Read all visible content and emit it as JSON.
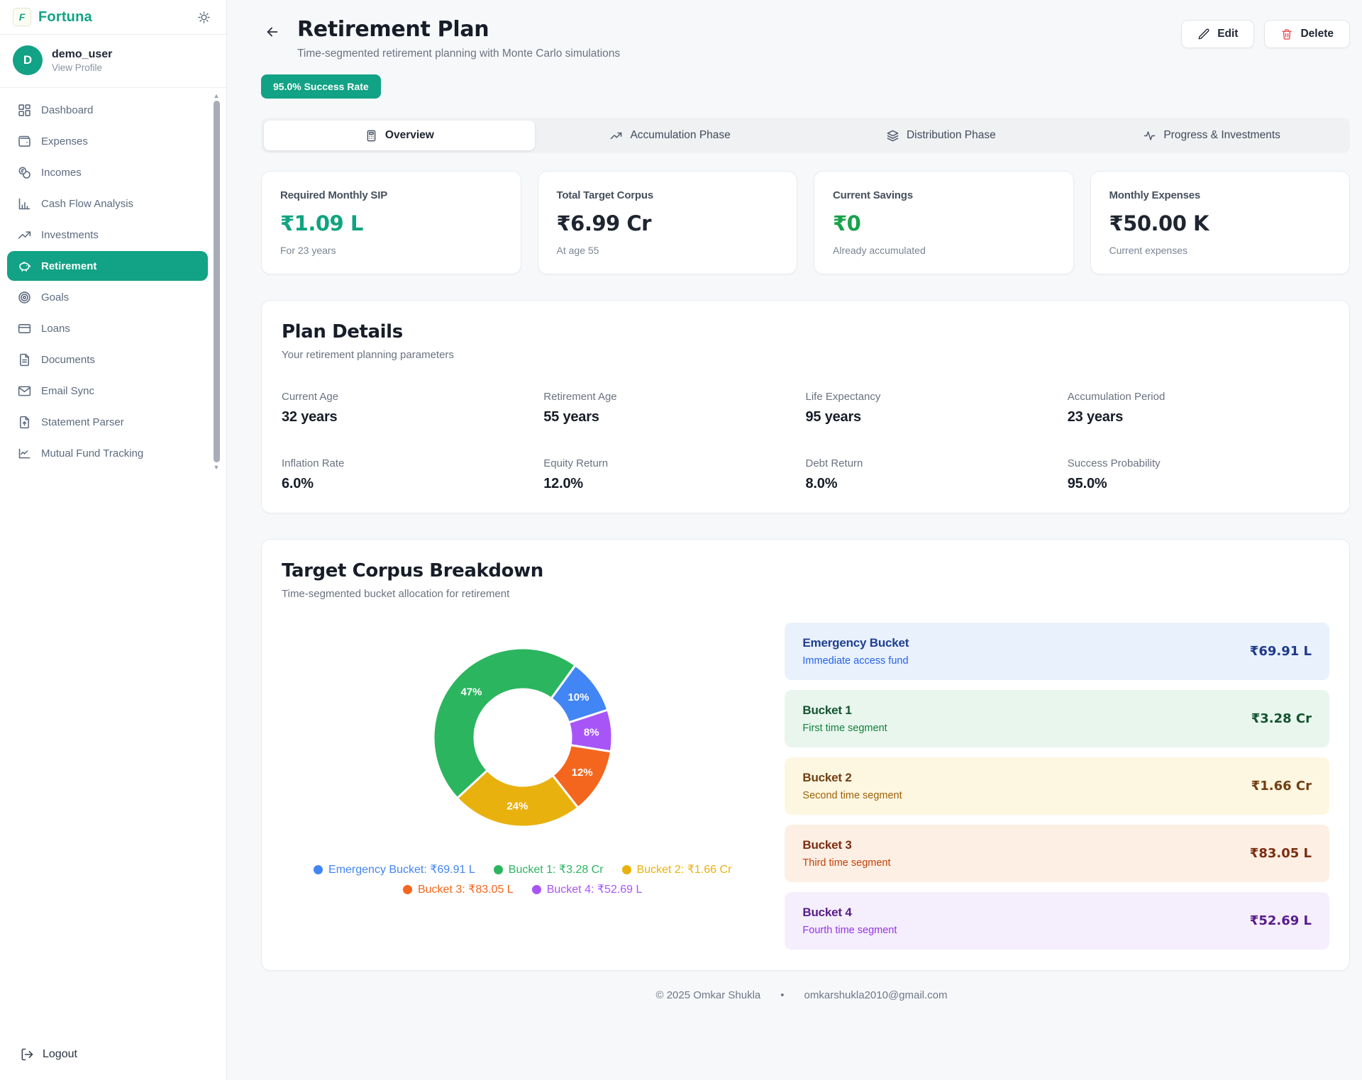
{
  "brand": {
    "name": "Fortuna",
    "logo_letter": "F"
  },
  "user": {
    "initial": "D",
    "name": "demo_user",
    "action": "View Profile"
  },
  "sidebar": {
    "items": [
      {
        "label": "Dashboard",
        "icon": "dashboard-grid-icon",
        "active": false
      },
      {
        "label": "Expenses",
        "icon": "wallet-icon",
        "active": false
      },
      {
        "label": "Incomes",
        "icon": "coins-icon",
        "active": false
      },
      {
        "label": "Cash Flow Analysis",
        "icon": "bar-chart-icon",
        "active": false
      },
      {
        "label": "Investments",
        "icon": "trending-up-icon",
        "active": false
      },
      {
        "label": "Retirement",
        "icon": "piggy-bank-icon",
        "active": true
      },
      {
        "label": "Goals",
        "icon": "target-icon",
        "active": false
      },
      {
        "label": "Loans",
        "icon": "credit-card-icon",
        "active": false
      },
      {
        "label": "Documents",
        "icon": "document-icon",
        "active": false
      },
      {
        "label": "Email Sync",
        "icon": "envelope-icon",
        "active": false
      },
      {
        "label": "Statement Parser",
        "icon": "file-upload-icon",
        "active": false
      },
      {
        "label": "Mutual Fund Tracking",
        "icon": "line-chart-icon",
        "active": false
      }
    ],
    "logout_label": "Logout"
  },
  "header": {
    "title": "Retirement Plan",
    "subtitle": "Time-segmented retirement planning with Monte Carlo simulations",
    "edit_label": "Edit",
    "delete_label": "Delete",
    "success_badge": "95.0% Success Rate"
  },
  "tabs": [
    {
      "label": "Overview",
      "icon": "calculator-icon",
      "active": true
    },
    {
      "label": "Accumulation Phase",
      "icon": "trending-up-icon",
      "active": false
    },
    {
      "label": "Distribution Phase",
      "icon": "layers-icon",
      "active": false
    },
    {
      "label": "Progress & Investments",
      "icon": "activity-icon",
      "active": false
    }
  ],
  "summary_cards": [
    {
      "label": "Required Monthly SIP",
      "value": "₹1.09 L",
      "note": "For 23 years",
      "value_color": "#10a37f"
    },
    {
      "label": "Total Target Corpus",
      "value": "₹6.99 Cr",
      "note": "At age 55",
      "value_color": "#1e2530"
    },
    {
      "label": "Current Savings",
      "value": "₹0",
      "note": "Already accumulated",
      "value_color": "#16a34a"
    },
    {
      "label": "Monthly Expenses",
      "value": "₹50.00 K",
      "note": "Current expenses",
      "value_color": "#1e2530"
    }
  ],
  "plan_details": {
    "title": "Plan Details",
    "subtitle": "Your retirement planning parameters",
    "fields": [
      {
        "label": "Current Age",
        "value": "32 years"
      },
      {
        "label": "Retirement Age",
        "value": "55 years"
      },
      {
        "label": "Life Expectancy",
        "value": "95 years"
      },
      {
        "label": "Accumulation Period",
        "value": "23 years"
      },
      {
        "label": "Inflation Rate",
        "value": "6.0%"
      },
      {
        "label": "Equity Return",
        "value": "12.0%"
      },
      {
        "label": "Debt Return",
        "value": "8.0%"
      },
      {
        "label": "Success Probability",
        "value": "95.0%"
      }
    ]
  },
  "corpus_breakdown": {
    "title": "Target Corpus Breakdown",
    "subtitle": "Time-segmented bucket allocation for retirement",
    "buckets": [
      {
        "name": "Emergency Bucket",
        "desc": "Immediate access fund",
        "value": "₹69.91 L",
        "bg": "#e9f1fd",
        "title_color": "#1d3f8f",
        "desc_color": "#2563eb",
        "value_color": "#1e3a8a"
      },
      {
        "name": "Bucket 1",
        "desc": "First time segment",
        "value": "₹3.28 Cr",
        "bg": "#e8f6ee",
        "title_color": "#14532d",
        "desc_color": "#15803d",
        "value_color": "#14532d"
      },
      {
        "name": "Bucket 2",
        "desc": "Second time segment",
        "value": "₹1.66 Cr",
        "bg": "#fdf6e1",
        "title_color": "#713f12",
        "desc_color": "#a16207",
        "value_color": "#713f12"
      },
      {
        "name": "Bucket 3",
        "desc": "Third time segment",
        "value": "₹83.05 L",
        "bg": "#fdefe3",
        "title_color": "#7c2d12",
        "desc_color": "#c2410c",
        "value_color": "#7c2d12"
      },
      {
        "name": "Bucket 4",
        "desc": "Fourth time segment",
        "value": "₹52.69 L",
        "bg": "#f5eefd",
        "title_color": "#581c87",
        "desc_color": "#9333ea",
        "value_color": "#581c87"
      }
    ]
  },
  "chart_data": {
    "type": "pie",
    "subtype": "donut",
    "title": "Target Corpus Breakdown",
    "labels": [
      "Emergency Bucket",
      "Bucket 1",
      "Bucket 2",
      "Bucket 3",
      "Bucket 4"
    ],
    "values_lakh": [
      69.91,
      328,
      166,
      83.05,
      52.69
    ],
    "values_display": [
      "₹69.91 L",
      "₹3.28 Cr",
      "₹1.66 Cr",
      "₹83.05 L",
      "₹52.69 L"
    ],
    "percent_labels": [
      "10%",
      "47%",
      "24%",
      "12%",
      "8%"
    ],
    "colors": [
      "#4285f4",
      "#2bb55f",
      "#e9b10e",
      "#f4661d",
      "#a855f7"
    ],
    "total_display": "₹6.99 Cr",
    "start_angle_deg": 36,
    "draw_order_clockwise": [
      0,
      4,
      3,
      2,
      1
    ],
    "legend_position": "bottom",
    "inner_radius_ratio": 0.54
  },
  "footer": {
    "copyright": "© 2025 Omkar Shukla",
    "separator": "•",
    "email": "omkarshukla2010@gmail.com"
  }
}
